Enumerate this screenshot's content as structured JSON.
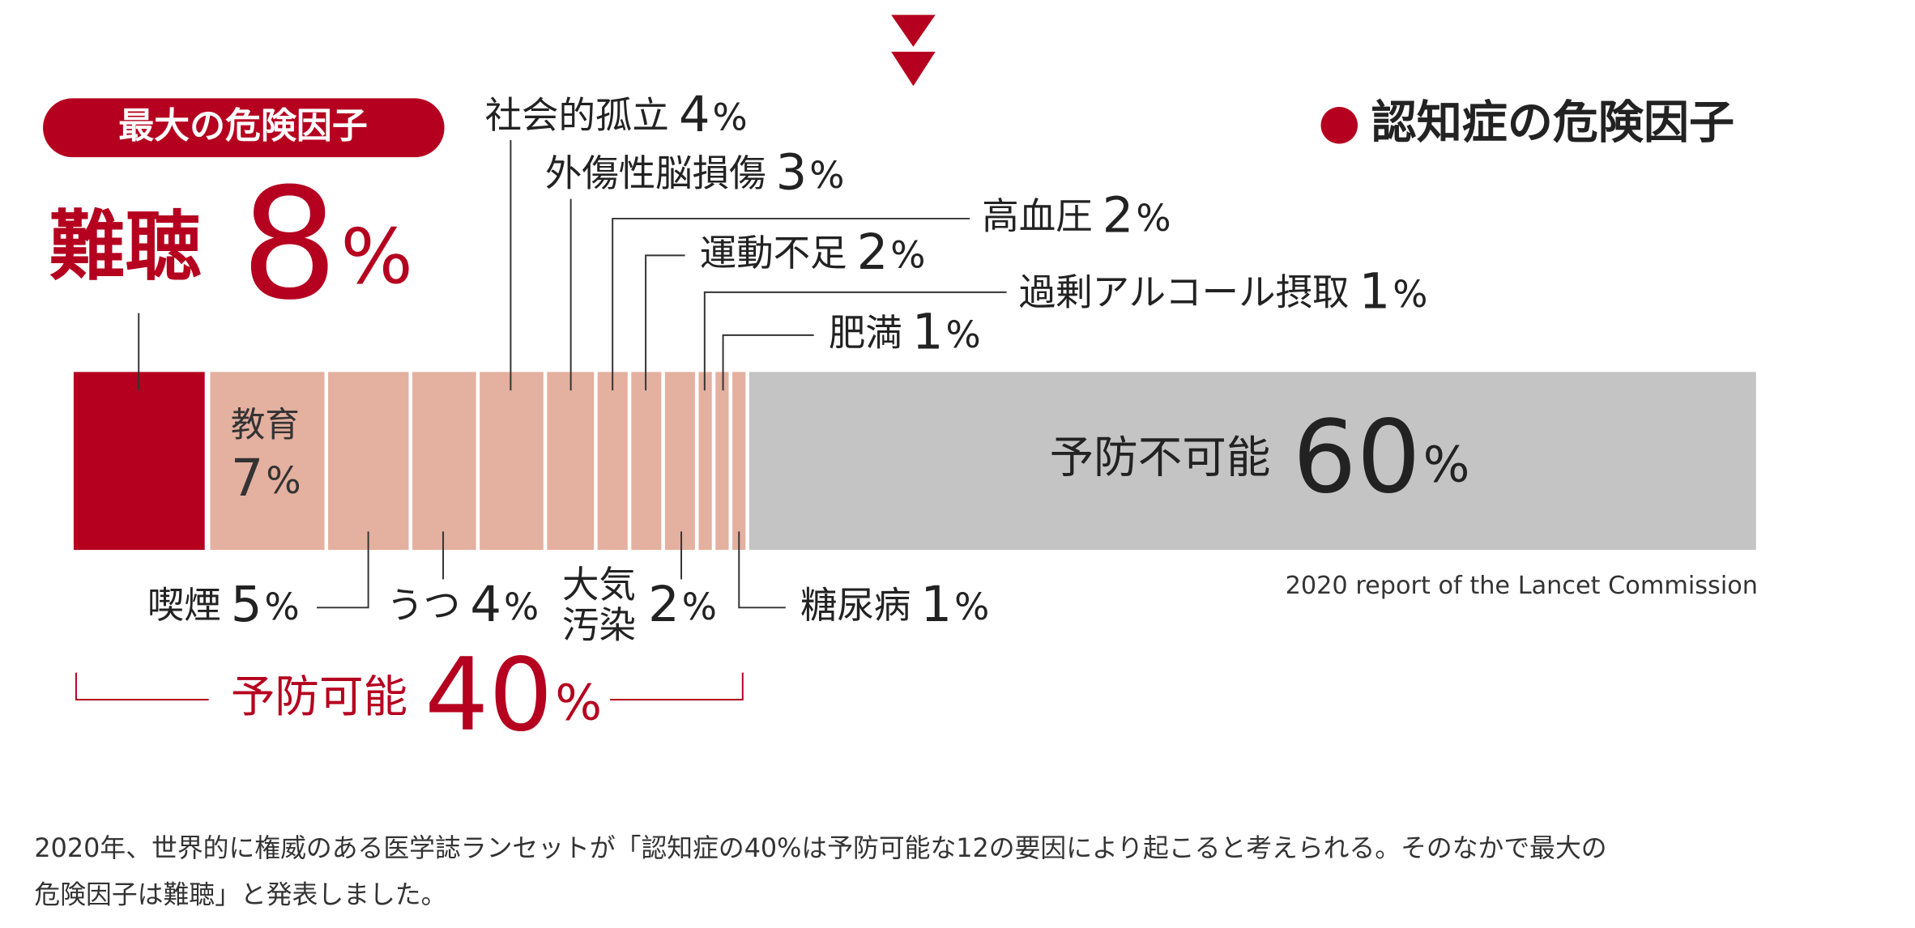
{
  "chart_data": {
    "type": "stacked-bar",
    "title": "認知症の危険因子",
    "badge": "最大の危険因子",
    "categories": [
      "難聴",
      "教育",
      "喫煙",
      "うつ",
      "社会的孤立",
      "外傷性脳損傷",
      "高血圧",
      "運動不足",
      "大気\n汚染",
      "過剰アルコール摂取",
      "肥満",
      "糖尿病",
      "予防不可能"
    ],
    "values": [
      8,
      7,
      5,
      4,
      4,
      3,
      2,
      2,
      2,
      1,
      1,
      1,
      60
    ],
    "colors": [
      "#b5001f",
      "#e4b09f",
      "#e4b09f",
      "#e4b09f",
      "#e4b09f",
      "#e4b09f",
      "#e4b09f",
      "#e4b09f",
      "#e4b09f",
      "#e4b09f",
      "#e4b09f",
      "#e4b09f",
      "#c4c4c4"
    ],
    "unit": "%",
    "xlim": [
      0,
      100
    ],
    "preventable_label": "予防可能",
    "preventable_total": 40,
    "source": "2020 report of the Lancet Commission"
  },
  "paragraph": [
    "2020年、世界的に権威のある医学誌ランセットが「認知症の40%は予防可能な12の要因により起こると考えられる。そのなかで最大の",
    "危険因子は難聴」と発表しました。"
  ]
}
